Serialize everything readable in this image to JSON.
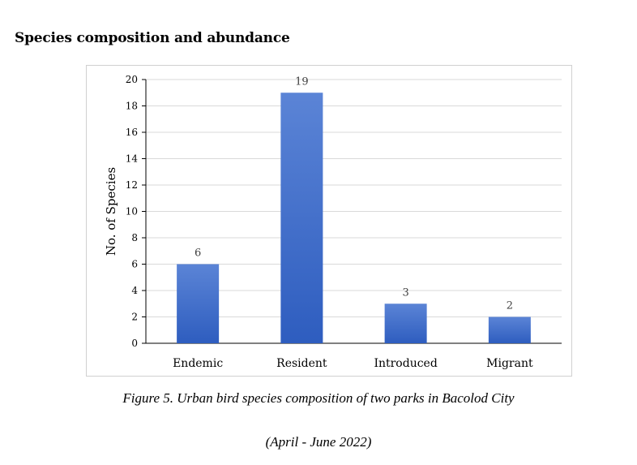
{
  "heading": "Species composition and abundance",
  "caption": {
    "line1": "Figure 5. Urban bird species composition of two parks in Bacolod City",
    "line2": "(April - June 2022)"
  },
  "colors": {
    "bar_top": "#5b84d6",
    "bar_bottom": "#2e5dbf",
    "grid": "#d9d9d9",
    "axis": "#000000"
  },
  "chart_data": {
    "type": "bar",
    "categories": [
      "Endemic",
      "Resident",
      "Introduced",
      "Migrant"
    ],
    "values": [
      6,
      19,
      3,
      2
    ],
    "data_labels": [
      "6",
      "19",
      "3",
      "2"
    ],
    "ylabel": "No. of Species",
    "xlabel": "",
    "ylim": [
      0,
      20
    ],
    "yticks": [
      "0",
      "2",
      "4",
      "6",
      "8",
      "10",
      "12",
      "14",
      "16",
      "18",
      "20"
    ],
    "grid": true
  }
}
